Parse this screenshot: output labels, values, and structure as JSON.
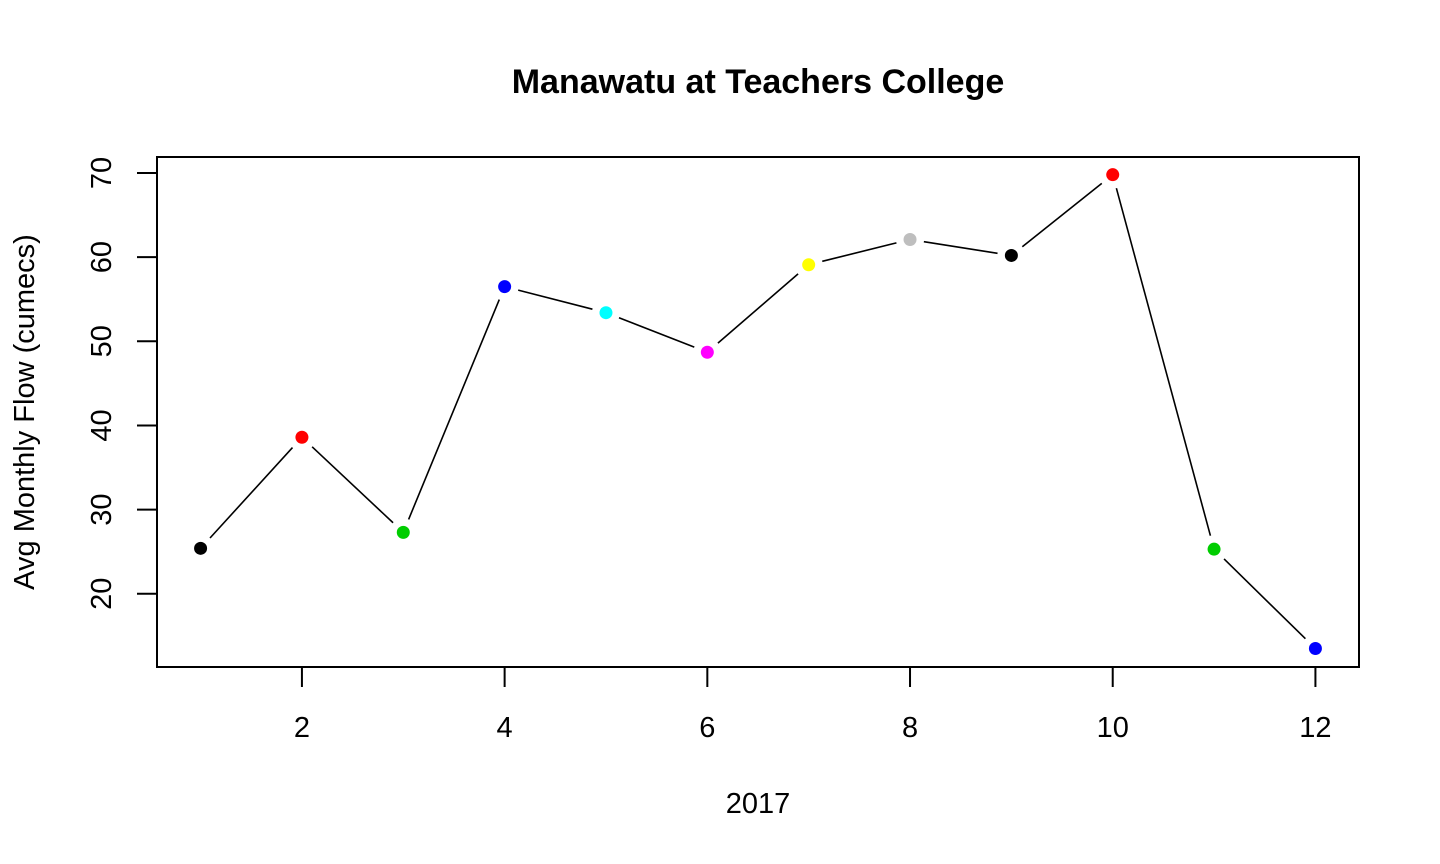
{
  "chart_data": {
    "type": "line",
    "title": "Manawatu at Teachers College",
    "xlabel": "2017",
    "ylabel": "Avg Monthly Flow (cumecs)",
    "xlim": [
      0.57,
      12.43
    ],
    "ylim": [
      11.3,
      71.9
    ],
    "x_ticks": [
      2,
      4,
      6,
      8,
      10,
      12
    ],
    "y_ticks": [
      20,
      30,
      40,
      50,
      60,
      70
    ],
    "grid": false,
    "line_color": "#000000",
    "series": [
      {
        "x": [
          1,
          2,
          3,
          4,
          5,
          6,
          7,
          8,
          9,
          10,
          11,
          12
        ],
        "values": [
          25.4,
          38.6,
          27.3,
          56.5,
          53.4,
          48.7,
          59.1,
          62.1,
          60.2,
          69.8,
          25.3,
          13.5
        ],
        "point_colors": [
          "#000000",
          "#FF0000",
          "#00CD00",
          "#0000FF",
          "#00FFFF",
          "#FF00FF",
          "#FFFF00",
          "#BEBEBE",
          "#000000",
          "#FF0000",
          "#00CD00",
          "#0000FF"
        ]
      }
    ]
  }
}
